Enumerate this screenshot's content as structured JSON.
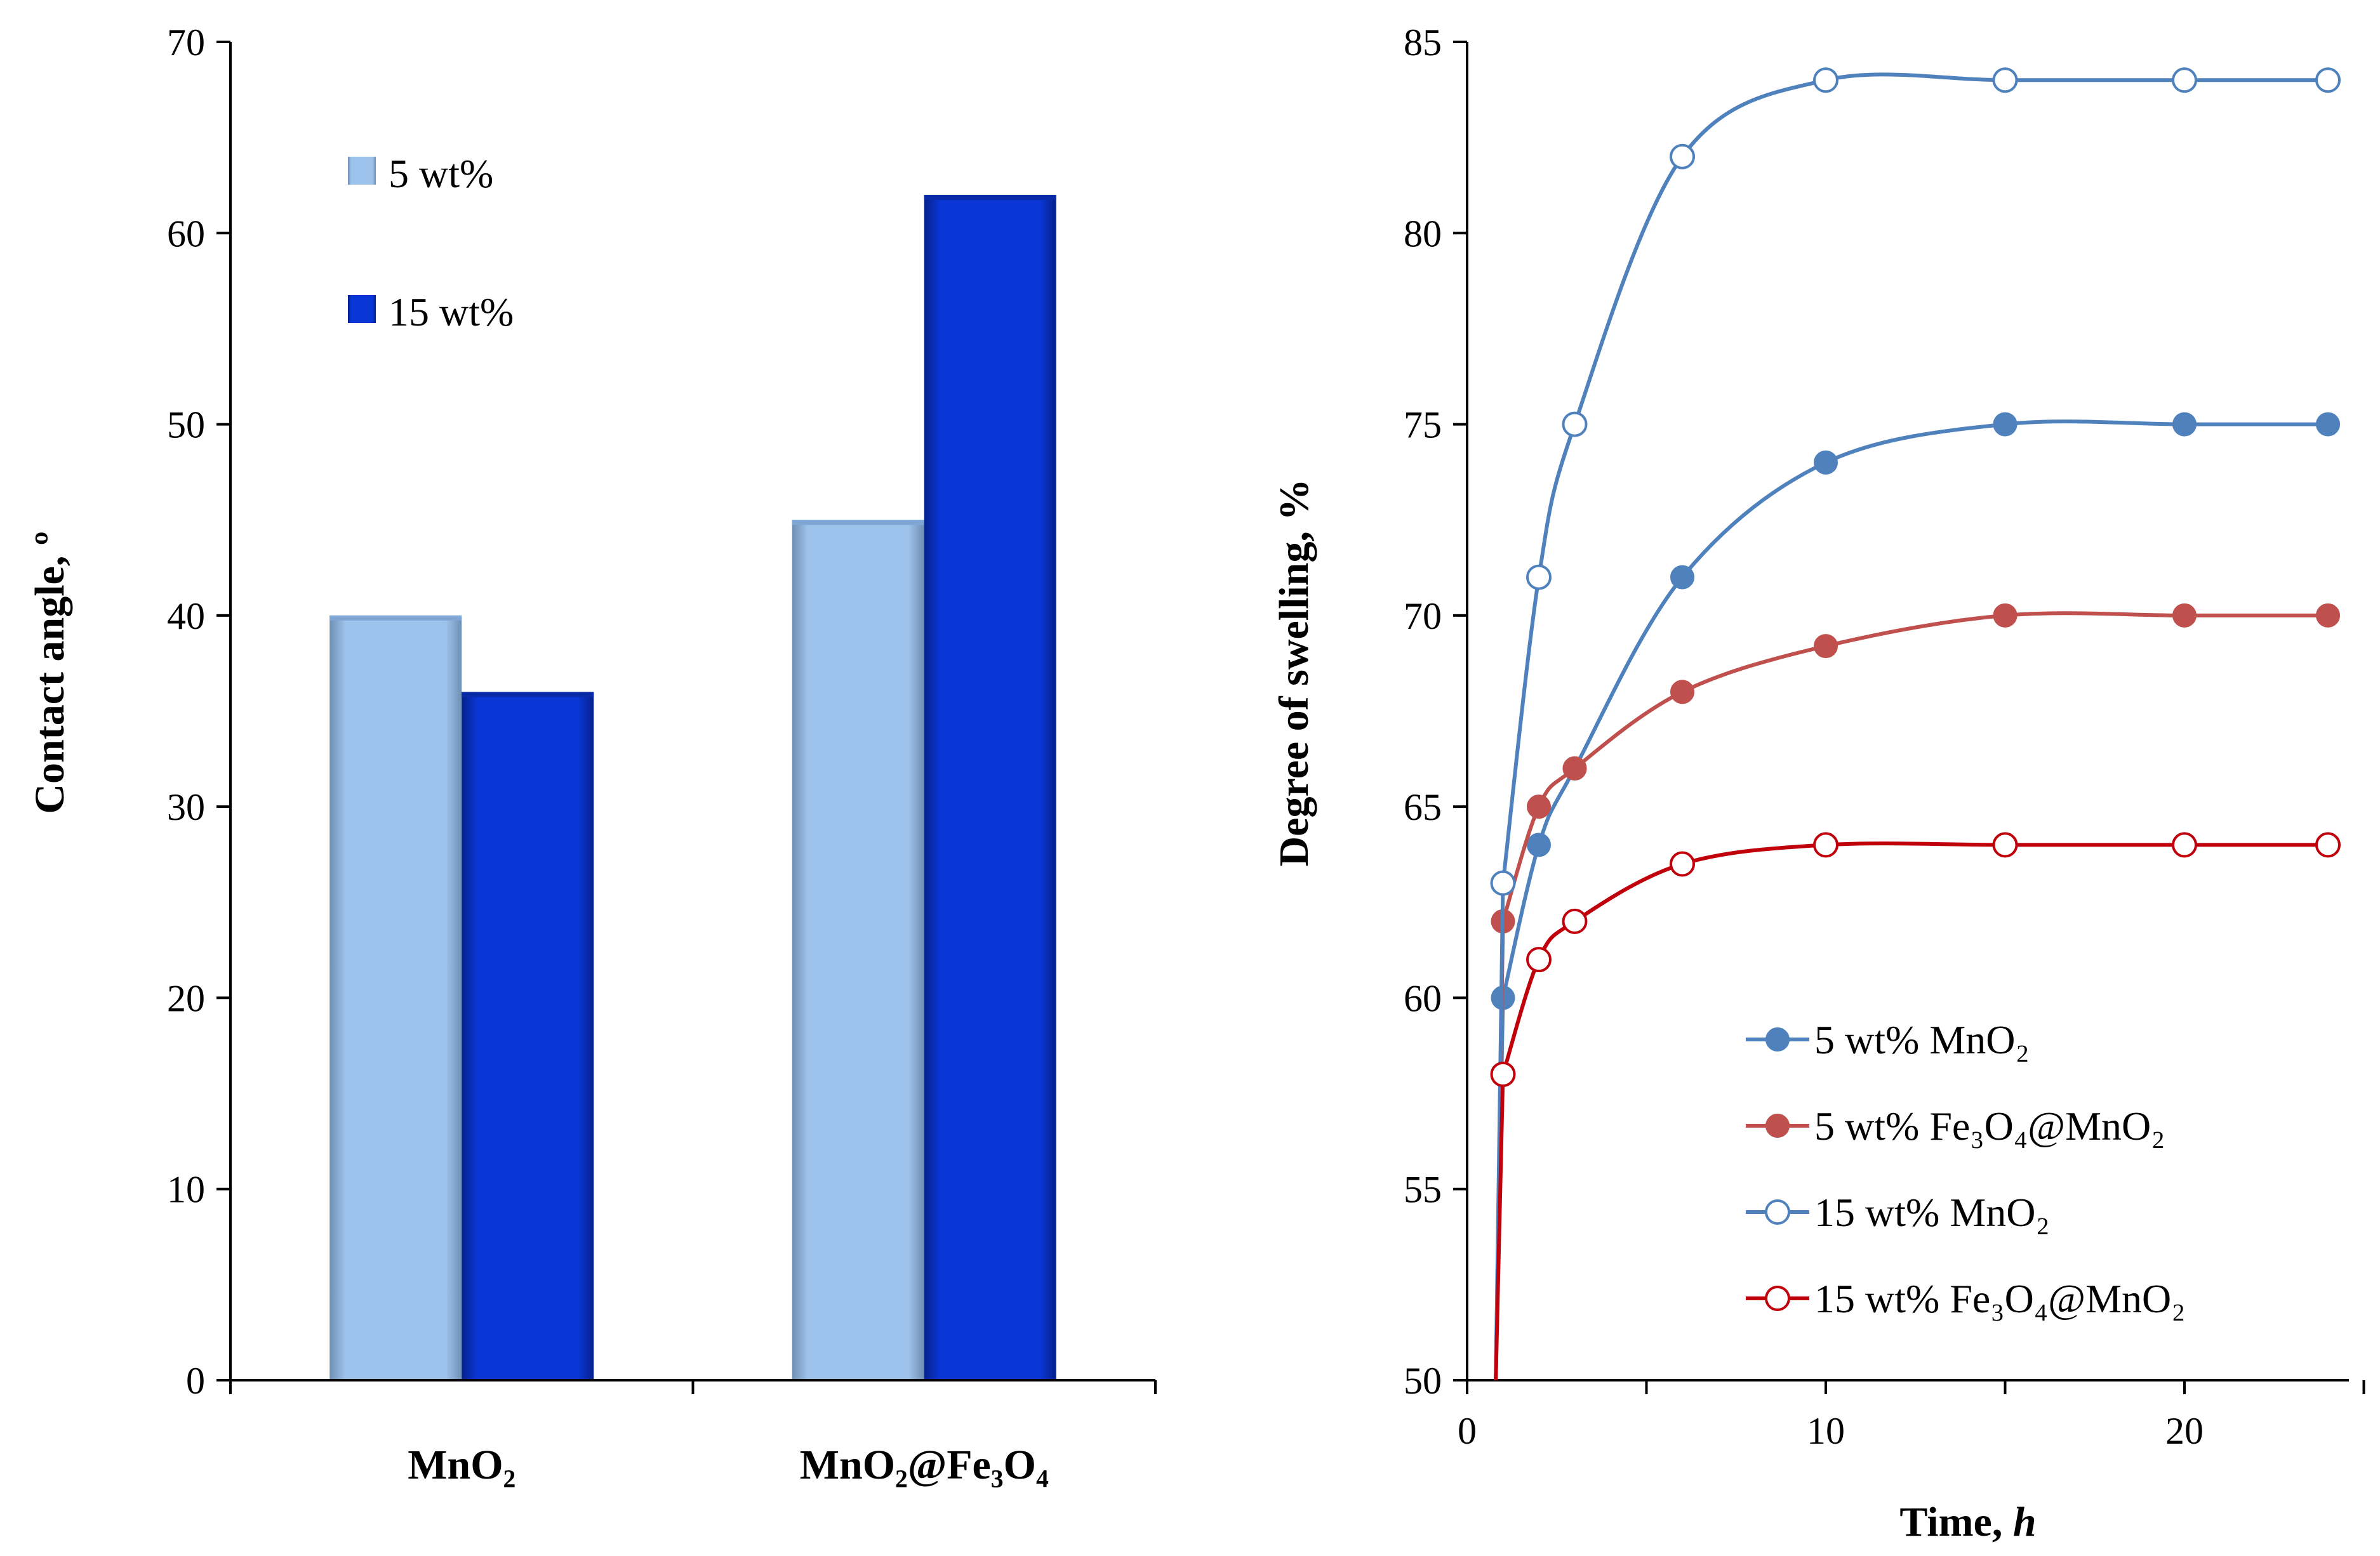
{
  "colors": {
    "bar_5": "#9dc3ec",
    "bar_15": "#0a36d6",
    "mno2_line": "#4f81bd",
    "fe_line": "#c0504d",
    "fe15_line": "#c0000a"
  },
  "chart_data": [
    {
      "type": "bar",
      "title": "",
      "xlabel": "",
      "ylabel": "Contact angle, º",
      "ylim": [
        0,
        70
      ],
      "yticks": [
        "0",
        "10",
        "20",
        "30",
        "40",
        "50",
        "60",
        "70"
      ],
      "categories": [
        "MnO₂",
        "MnO₂@Fe₃O₄"
      ],
      "series": [
        {
          "name": "5 wt%",
          "values": [
            40,
            45
          ]
        },
        {
          "name": "15 wt%",
          "values": [
            36,
            62
          ]
        }
      ],
      "legend_position": "top-left"
    },
    {
      "type": "line",
      "title": "",
      "xlabel": "Time, ",
      "xlabel_italic": "h",
      "ylabel": "Degree of swelling, %",
      "xlim": [
        0,
        25
      ],
      "ylim": [
        50,
        85
      ],
      "xticks": [
        "0",
        "10",
        "20"
      ],
      "yticks": [
        "50",
        "55",
        "60",
        "65",
        "70",
        "75",
        "80",
        "85"
      ],
      "series": [
        {
          "name": "5 wt% MnO₂",
          "marker": "filled",
          "x": [
            1,
            2,
            3,
            6,
            10,
            15,
            20,
            24
          ],
          "y": [
            60,
            64,
            66,
            71,
            74,
            75,
            75,
            75
          ]
        },
        {
          "name": "5 wt% Fe₃O₄@MnO₂",
          "marker": "filled",
          "x": [
            1,
            2,
            3,
            6,
            10,
            15,
            20,
            24
          ],
          "y": [
            62,
            65,
            66,
            68,
            69.2,
            70,
            70,
            70
          ]
        },
        {
          "name": "15 wt% MnO₂",
          "marker": "open",
          "x": [
            1,
            2,
            3,
            6,
            10,
            15,
            20,
            24
          ],
          "y": [
            63,
            71,
            75,
            82,
            84,
            84,
            84,
            84
          ]
        },
        {
          "name": "15 wt% Fe₃O₄@MnO₂",
          "marker": "open",
          "x": [
            1,
            2,
            3,
            6,
            10,
            15,
            20,
            24
          ],
          "y": [
            58,
            61,
            62,
            63.5,
            64,
            64,
            64,
            64
          ]
        }
      ],
      "legend_position": "bottom-right"
    }
  ]
}
